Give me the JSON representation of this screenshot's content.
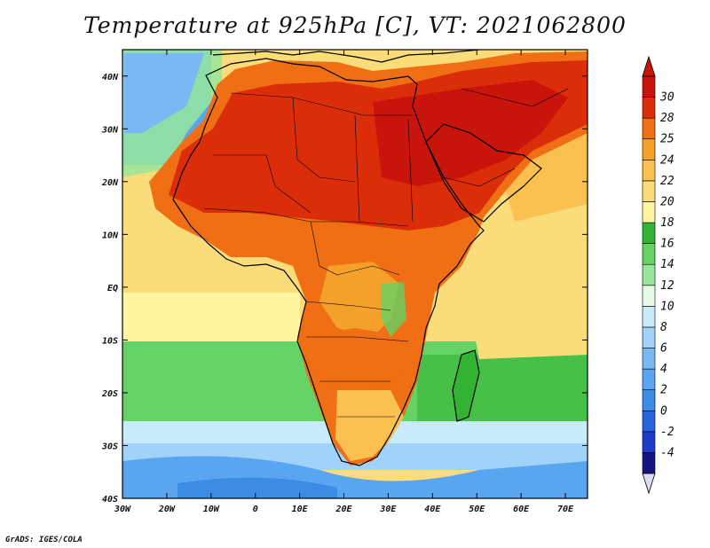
{
  "title": "Temperature at 925hPa [C], VT: 2021062800",
  "credit": "GrADS: IGES/COLA",
  "map": {
    "projection": "lat-lon",
    "lon_range": [
      -30,
      75
    ],
    "lat_range": [
      -40,
      45
    ],
    "lon_ticks": [
      {
        "value": -30,
        "label": "30W"
      },
      {
        "value": -20,
        "label": "20W"
      },
      {
        "value": -10,
        "label": "10W"
      },
      {
        "value": 0,
        "label": "0"
      },
      {
        "value": 10,
        "label": "10E"
      },
      {
        "value": 20,
        "label": "20E"
      },
      {
        "value": 30,
        "label": "30E"
      },
      {
        "value": 40,
        "label": "40E"
      },
      {
        "value": 50,
        "label": "50E"
      },
      {
        "value": 60,
        "label": "60E"
      },
      {
        "value": 70,
        "label": "70E"
      }
    ],
    "lat_ticks": [
      {
        "value": 40,
        "label": "40N"
      },
      {
        "value": 30,
        "label": "30N"
      },
      {
        "value": 20,
        "label": "20N"
      },
      {
        "value": 10,
        "label": "10N"
      },
      {
        "value": 0,
        "label": "EQ"
      },
      {
        "value": -10,
        "label": "10S"
      },
      {
        "value": -20,
        "label": "20S"
      },
      {
        "value": -30,
        "label": "30S"
      },
      {
        "value": -40,
        "label": "40S"
      }
    ]
  },
  "colorbar": {
    "levels": [
      "-4",
      "-2",
      "0",
      "2",
      "4",
      "6",
      "8",
      "10",
      "12",
      "14",
      "16",
      "18",
      "20",
      "22",
      "24",
      "25",
      "28",
      "30"
    ],
    "colors": [
      "#141482",
      "#1e3cc8",
      "#2864dc",
      "#3c8ce6",
      "#5aa5f0",
      "#78b9f5",
      "#a0d2fa",
      "#c8ebfa",
      "#e6fae6",
      "#96e69b",
      "#64d264",
      "#32b432",
      "#fff5a0",
      "#fadc78",
      "#fac050",
      "#f5a028",
      "#f06e14",
      "#dc2d0a",
      "#c8140a"
    ],
    "low_triangle_color": "#dcdcf5",
    "high_triangle_color": "#c8140a"
  },
  "color_keys": {
    "ocean_cold": "#5aa5f0",
    "ocean_cool": "#96e69b",
    "ocean_mild": "#fadc78",
    "land_hot": "#dc2d0a",
    "land_warm": "#f06e14"
  }
}
